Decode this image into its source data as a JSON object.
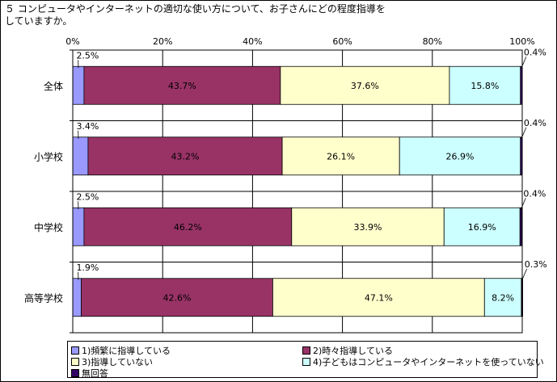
{
  "title": "５ コンピュータやインターネットの適切な使い方について、お子さんにどの程度指導を\nしていますか。",
  "chart_data": {
    "type": "bar",
    "orientation": "horizontal",
    "stacked": "percent",
    "categories": [
      "全体",
      "小学校",
      "中学校",
      "高等学校"
    ],
    "xlim": [
      0,
      100
    ],
    "xticks": [
      "0%",
      "20%",
      "40%",
      "60%",
      "80%",
      "100%"
    ],
    "grid": true,
    "legend_position": "bottom",
    "series": [
      {
        "name": "1)頻繁に指導している",
        "color": "#9999ff",
        "values": [
          2.5,
          3.4,
          2.5,
          1.9
        ],
        "labels": [
          "2.5%",
          "3.4%",
          "2.5%",
          "1.9%"
        ]
      },
      {
        "name": "2)時々指導している",
        "color": "#993366",
        "values": [
          43.7,
          43.2,
          46.2,
          42.6
        ],
        "labels": [
          "43.7%",
          "43.2%",
          "46.2%",
          "42.6%"
        ]
      },
      {
        "name": "3)指導していない",
        "color": "#ffffcc",
        "values": [
          37.6,
          26.1,
          33.9,
          47.1
        ],
        "labels": [
          "37.6%",
          "26.1%",
          "33.9%",
          "47.1%"
        ]
      },
      {
        "name": "4)子どもはコンピュータやインターネットを使っていない",
        "color": "#ccffff",
        "values": [
          15.8,
          26.9,
          16.9,
          8.2
        ],
        "labels": [
          "15.8%",
          "26.9%",
          "16.9%",
          "8.2%"
        ]
      },
      {
        "name": "無回答",
        "color": "#330066",
        "values": [
          0.4,
          0.4,
          0.4,
          0.3
        ],
        "labels": [
          "0.4%",
          "0.4%",
          "0.4%",
          "0.3%"
        ]
      }
    ]
  }
}
